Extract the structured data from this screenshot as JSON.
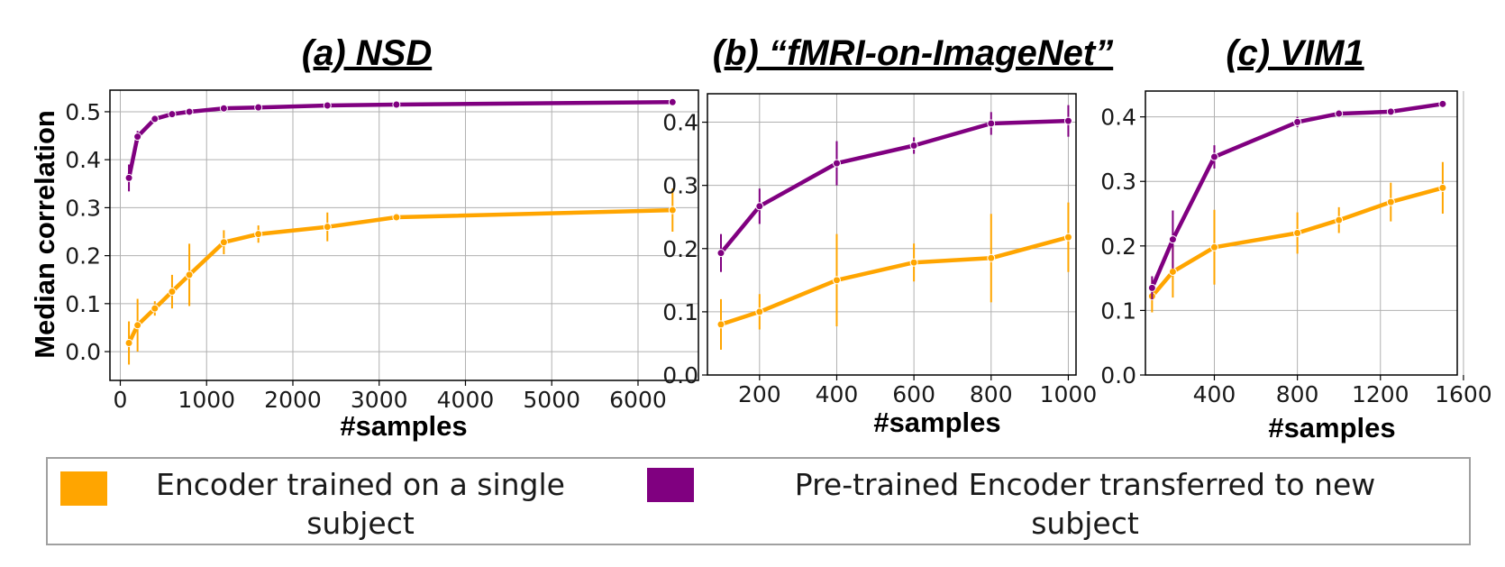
{
  "colors": {
    "single": "#FFA500",
    "pretrained": "#800080",
    "grid": "#b0b0b0"
  },
  "legend": {
    "single_line1": "Encoder trained on a single",
    "single_line2": "subject",
    "pretrained_line1": "Pre-trained Encoder transferred to new",
    "pretrained_line2": "subject"
  },
  "chart_data": [
    {
      "type": "line",
      "title": "(a) NSD",
      "xlabel": "#samples",
      "ylabel": "Median  correlation",
      "xlim": [
        -120,
        6700
      ],
      "ylim": [
        -0.06,
        0.545
      ],
      "xticks": [
        0,
        1000,
        2000,
        3000,
        4000,
        5000,
        6000
      ],
      "yticks": [
        0.0,
        0.1,
        0.2,
        0.3,
        0.4,
        0.5
      ],
      "ytick_labels": [
        "0.0",
        "0.1",
        "0.2",
        "0.3",
        "0.4",
        "0.5"
      ],
      "grid": true,
      "series": [
        {
          "key": "single",
          "x": [
            100,
            200,
            400,
            600,
            800,
            1200,
            1600,
            2400,
            3200,
            6400
          ],
          "y": [
            0.018,
            0.055,
            0.09,
            0.125,
            0.16,
            0.228,
            0.245,
            0.26,
            0.28,
            0.295
          ],
          "err": [
            0.045,
            0.055,
            0.015,
            0.035,
            0.065,
            0.025,
            0.018,
            0.03,
            0.008,
            0.045
          ]
        },
        {
          "key": "pretrained",
          "x": [
            100,
            200,
            400,
            600,
            800,
            1200,
            1600,
            2400,
            3200,
            6400
          ],
          "y": [
            0.362,
            0.448,
            0.485,
            0.495,
            0.5,
            0.507,
            0.509,
            0.513,
            0.515,
            0.52
          ],
          "err": [
            0.028,
            0.012,
            0.006,
            0.004,
            0.003,
            0.003,
            0.002,
            0.002,
            0.002,
            0.002
          ]
        }
      ]
    },
    {
      "type": "line",
      "title": "(b) “fMRI-on-ImageNet”",
      "xlabel": "#samples",
      "ylabel": "",
      "xlim": [
        65,
        1020
      ],
      "ylim": [
        0.0,
        0.445
      ],
      "xticks": [
        200,
        400,
        600,
        800,
        1000
      ],
      "yticks": [
        0.0,
        0.1,
        0.2,
        0.3,
        0.4
      ],
      "ytick_labels": [
        "0.0",
        "0.1",
        "0.2",
        "0.3",
        "0.4"
      ],
      "grid": true,
      "series": [
        {
          "key": "single",
          "x": [
            100,
            200,
            400,
            600,
            800,
            1000
          ],
          "y": [
            0.08,
            0.1,
            0.15,
            0.178,
            0.185,
            0.218
          ],
          "err": [
            0.04,
            0.028,
            0.073,
            0.03,
            0.07,
            0.055
          ]
        },
        {
          "key": "pretrained",
          "x": [
            100,
            200,
            400,
            600,
            800,
            1000
          ],
          "y": [
            0.193,
            0.267,
            0.335,
            0.363,
            0.398,
            0.402
          ],
          "err": [
            0.03,
            0.028,
            0.035,
            0.013,
            0.018,
            0.025
          ]
        }
      ]
    },
    {
      "type": "line",
      "title": "(c) VIM1",
      "xlabel": "#samples",
      "ylabel": "",
      "xlim": [
        68,
        1570
      ],
      "ylim": [
        0.0,
        0.44
      ],
      "xticks": [
        400,
        800,
        1200,
        1600
      ],
      "yticks": [
        0.0,
        0.1,
        0.2,
        0.3,
        0.4
      ],
      "ytick_labels": [
        "0.0",
        "0.1",
        "0.2",
        "0.3",
        "0.4"
      ],
      "grid": true,
      "series": [
        {
          "key": "single",
          "x": [
            100,
            200,
            400,
            800,
            1000,
            1250,
            1500
          ],
          "y": [
            0.122,
            0.16,
            0.198,
            0.22,
            0.24,
            0.268,
            0.29
          ],
          "err": [
            0.025,
            0.04,
            0.058,
            0.032,
            0.02,
            0.03,
            0.04
          ]
        },
        {
          "key": "pretrained",
          "x": [
            100,
            200,
            400,
            800,
            1000,
            1250,
            1500
          ],
          "y": [
            0.135,
            0.21,
            0.338,
            0.392,
            0.405,
            0.408,
            0.42
          ],
          "err": [
            0.018,
            0.045,
            0.018,
            0.008,
            0.006,
            0.004,
            0.003
          ]
        }
      ]
    }
  ]
}
